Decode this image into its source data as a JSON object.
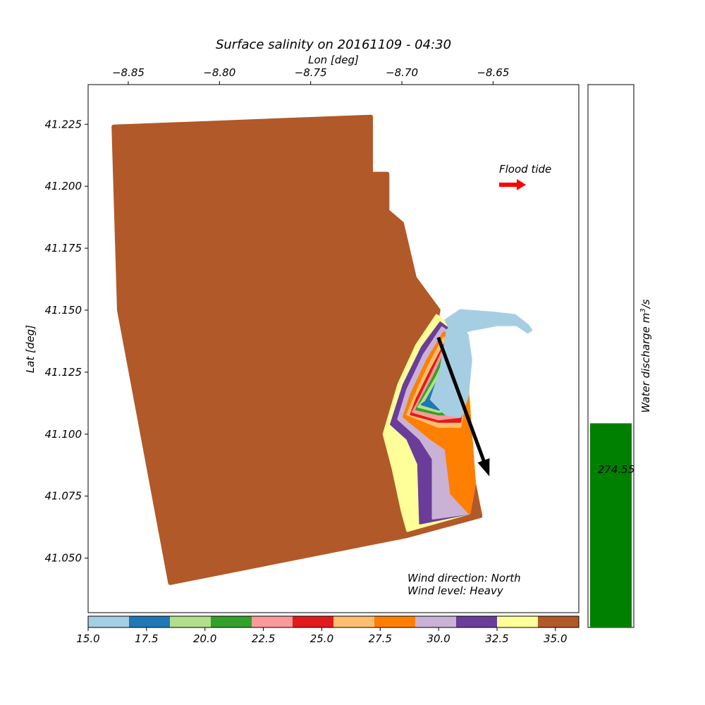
{
  "chart_data": {
    "type": "scatter",
    "title": "Surface salinity on 20161109 - 04:30",
    "xlabel": "Lon [deg]",
    "ylabel": "Lat [deg]",
    "xlim": [
      -8.872,
      -8.603
    ],
    "ylim": [
      41.028,
      41.241
    ],
    "x_ticks": [
      {
        "value": -8.85,
        "label": "−8.85"
      },
      {
        "value": -8.8,
        "label": "−8.80"
      },
      {
        "value": -8.75,
        "label": "−8.75"
      },
      {
        "value": -8.7,
        "label": "−8.70"
      },
      {
        "value": -8.65,
        "label": "−8.65"
      }
    ],
    "y_ticks": [
      {
        "value": 41.05,
        "label": "41.050"
      },
      {
        "value": 41.075,
        "label": "41.075"
      },
      {
        "value": 41.1,
        "label": "41.100"
      },
      {
        "value": 41.125,
        "label": "41.125"
      },
      {
        "value": 41.15,
        "label": "41.150"
      },
      {
        "value": 41.175,
        "label": "41.175"
      },
      {
        "value": 41.2,
        "label": "41.200"
      },
      {
        "value": 41.225,
        "label": "41.225"
      }
    ],
    "domain_outline": [
      [
        -8.858,
        41.224
      ],
      [
        -8.717,
        41.228
      ],
      [
        -8.717,
        41.205
      ],
      [
        -8.708,
        41.205
      ],
      [
        -8.708,
        41.19
      ],
      [
        -8.7,
        41.185
      ],
      [
        -8.693,
        41.163
      ],
      [
        -8.68,
        41.15
      ],
      [
        -8.693,
        41.103
      ],
      [
        -8.664,
        41.093
      ],
      [
        -8.657,
        41.067
      ],
      [
        -8.697,
        41.059
      ],
      [
        -8.827,
        41.04
      ],
      [
        -8.842,
        41.099
      ],
      [
        -8.855,
        41.15
      ]
    ],
    "plume_layers": [
      {
        "salinity": 33.5,
        "color": "#ffff99",
        "outline": [
          [
            -8.681,
            41.148
          ],
          [
            -8.692,
            41.136
          ],
          [
            -8.702,
            41.12
          ],
          [
            -8.71,
            41.1
          ],
          [
            -8.705,
            41.086
          ],
          [
            -8.7,
            41.069
          ],
          [
            -8.697,
            41.061
          ],
          [
            -8.663,
            41.068
          ],
          [
            -8.66,
            41.08
          ],
          [
            -8.662,
            41.1
          ],
          [
            -8.664,
            41.128
          ],
          [
            -8.67,
            41.142
          ]
        ]
      },
      {
        "salinity": 31.5,
        "color": "#6a3d9a",
        "outline": [
          [
            -8.679,
            41.145
          ],
          [
            -8.689,
            41.135
          ],
          [
            -8.699,
            41.12
          ],
          [
            -8.706,
            41.104
          ],
          [
            -8.697,
            41.098
          ],
          [
            -8.691,
            41.088
          ],
          [
            -8.69,
            41.064
          ],
          [
            -8.663,
            41.068
          ],
          [
            -8.66,
            41.08
          ],
          [
            -8.662,
            41.1
          ],
          [
            -8.665,
            41.128
          ],
          [
            -8.67,
            41.14
          ]
        ]
      },
      {
        "salinity": 30.0,
        "color": "#cab2d6",
        "outline": [
          [
            -8.678,
            41.143
          ],
          [
            -8.688,
            41.132
          ],
          [
            -8.697,
            41.118
          ],
          [
            -8.702,
            41.106
          ],
          [
            -8.69,
            41.098
          ],
          [
            -8.683,
            41.09
          ],
          [
            -8.683,
            41.066
          ],
          [
            -8.663,
            41.068
          ],
          [
            -8.66,
            41.08
          ],
          [
            -8.662,
            41.1
          ],
          [
            -8.665,
            41.128
          ],
          [
            -8.67,
            41.139
          ]
        ]
      },
      {
        "salinity": 28.0,
        "color": "#ff7f00",
        "outline": [
          [
            -8.677,
            41.141
          ],
          [
            -8.686,
            41.13
          ],
          [
            -8.695,
            41.116
          ],
          [
            -8.699,
            41.107
          ],
          [
            -8.684,
            41.098
          ],
          [
            -8.676,
            41.094
          ],
          [
            -8.673,
            41.076
          ],
          [
            -8.663,
            41.068
          ],
          [
            -8.66,
            41.08
          ],
          [
            -8.662,
            41.1
          ],
          [
            -8.665,
            41.128
          ],
          [
            -8.67,
            41.138
          ]
        ]
      },
      {
        "salinity": 26.5,
        "color": "#fdbf6f",
        "outline": [
          [
            -8.677,
            41.139
          ],
          [
            -8.685,
            41.128
          ],
          [
            -8.693,
            41.115
          ],
          [
            -8.697,
            41.108
          ],
          [
            -8.68,
            41.103
          ],
          [
            -8.668,
            41.103
          ],
          [
            -8.665,
            41.115
          ],
          [
            -8.668,
            41.128
          ],
          [
            -8.671,
            41.136
          ]
        ]
      },
      {
        "salinity": 24.5,
        "color": "#e31a1c",
        "outline": [
          [
            -8.676,
            41.137
          ],
          [
            -8.684,
            41.126
          ],
          [
            -8.692,
            41.114
          ],
          [
            -8.695,
            41.108
          ],
          [
            -8.68,
            41.105
          ],
          [
            -8.668,
            41.105
          ],
          [
            -8.666,
            41.116
          ],
          [
            -8.668,
            41.128
          ],
          [
            -8.671,
            41.135
          ]
        ]
      },
      {
        "salinity": 23.0,
        "color": "#fb9a99",
        "outline": [
          [
            -8.676,
            41.136
          ],
          [
            -8.683,
            41.125
          ],
          [
            -8.691,
            41.113
          ],
          [
            -8.694,
            41.109
          ],
          [
            -8.68,
            41.106
          ],
          [
            -8.668,
            41.107
          ],
          [
            -8.666,
            41.117
          ],
          [
            -8.668,
            41.128
          ],
          [
            -8.671,
            41.134
          ]
        ]
      },
      {
        "salinity": 21.5,
        "color": "#33a02c",
        "outline": [
          [
            -8.675,
            41.135
          ],
          [
            -8.682,
            41.124
          ],
          [
            -8.69,
            41.113
          ],
          [
            -8.692,
            41.11
          ],
          [
            -8.68,
            41.108
          ],
          [
            -8.668,
            41.108
          ],
          [
            -8.666,
            41.118
          ],
          [
            -8.668,
            41.128
          ],
          [
            -8.671,
            41.133
          ]
        ]
      },
      {
        "salinity": 19.5,
        "color": "#b2df8a",
        "outline": [
          [
            -8.674,
            41.134
          ],
          [
            -8.681,
            41.123
          ],
          [
            -8.689,
            41.113
          ],
          [
            -8.691,
            41.111
          ],
          [
            -8.68,
            41.109
          ],
          [
            -8.668,
            41.11
          ],
          [
            -8.666,
            41.119
          ],
          [
            -8.668,
            41.128
          ],
          [
            -8.671,
            41.132
          ]
        ]
      },
      {
        "salinity": 17.5,
        "color": "#1f78b4",
        "outline": [
          [
            -8.674,
            41.133
          ],
          [
            -8.68,
            41.122
          ],
          [
            -8.687,
            41.113
          ],
          [
            -8.689,
            41.112
          ],
          [
            -8.68,
            41.11
          ],
          [
            -8.668,
            41.111
          ],
          [
            -8.666,
            41.12
          ],
          [
            -8.668,
            41.128
          ],
          [
            -8.671,
            41.131
          ]
        ]
      },
      {
        "salinity": 15.8,
        "color": "#a6cee3",
        "outline": [
          [
            -8.675,
            41.142
          ],
          [
            -8.679,
            41.125
          ],
          [
            -8.684,
            41.114
          ],
          [
            -8.676,
            41.108
          ],
          [
            -8.668,
            41.107
          ],
          [
            -8.664,
            41.115
          ],
          [
            -8.662,
            41.13
          ],
          [
            -8.664,
            41.14
          ],
          [
            -8.67,
            41.146
          ]
        ]
      },
      {
        "salinity": 15.8,
        "color": "#a6cee3",
        "outline": [
          [
            -8.676,
            41.146
          ],
          [
            -8.668,
            41.15
          ],
          [
            -8.65,
            41.149
          ],
          [
            -8.638,
            41.148
          ],
          [
            -8.631,
            41.144
          ],
          [
            -8.629,
            41.142
          ],
          [
            -8.631,
            41.141
          ],
          [
            -8.637,
            41.144
          ],
          [
            -8.648,
            41.144
          ],
          [
            -8.662,
            41.142
          ],
          [
            -8.672,
            41.14
          ]
        ]
      }
    ],
    "annotations": [
      "Flood tide",
      "Wind direction: North",
      "Wind level: Heavy"
    ],
    "flood_tide_arrow": {
      "direction": "east",
      "color": "#ff0000"
    },
    "wind_arrow": {
      "from": [
        -8.68,
        41.139
      ],
      "to": [
        -8.652,
        41.083
      ],
      "color": "#000000"
    },
    "colorbar": {
      "orientation": "horizontal",
      "range": [
        15.0,
        36.0
      ],
      "colors": [
        "#a6cee3",
        "#1f78b4",
        "#b2df8a",
        "#33a02c",
        "#fb9a99",
        "#e31a1c",
        "#fdbf6f",
        "#ff7f00",
        "#cab2d6",
        "#6a3d9a",
        "#ffff99",
        "#b15928"
      ],
      "ticks": [
        {
          "value": 15.0,
          "label": "15.0"
        },
        {
          "value": 17.5,
          "label": "17.5"
        },
        {
          "value": 20.0,
          "label": "20.0"
        },
        {
          "value": 22.5,
          "label": "22.5"
        },
        {
          "value": 25.0,
          "label": "25.0"
        },
        {
          "value": 27.5,
          "label": "27.5"
        },
        {
          "value": 30.0,
          "label": "30.0"
        },
        {
          "value": 32.5,
          "label": "32.5"
        },
        {
          "value": 35.0,
          "label": "35.0"
        }
      ]
    },
    "discharge": {
      "type": "bar",
      "label": "Water discharge m³/s",
      "label_text": "Water discharge m",
      "label_sup": "3",
      "label_tail": "/s",
      "value": 274.55,
      "value_label": "274.55",
      "ylim": [
        0,
        730
      ],
      "color": "#008000"
    },
    "sea_color": "#b15928",
    "grid": false
  }
}
